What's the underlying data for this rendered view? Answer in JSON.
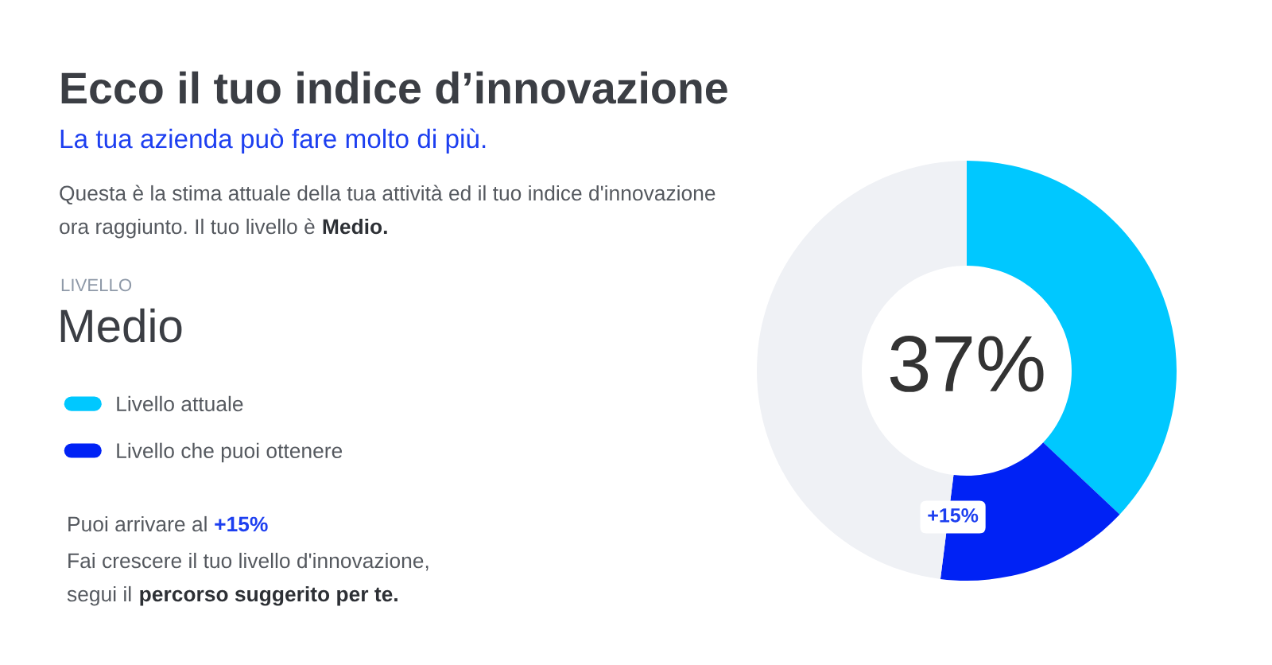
{
  "chart_data": {
    "type": "donut",
    "title": "Ecco il tuo indice d’innovazione",
    "subtitle": "La tua azienda può fare molto di più.",
    "categories": [
      "Livello attuale",
      "Livello che puoi ottenere",
      null
    ],
    "values": [
      37,
      15,
      48
    ],
    "colors": [
      "#00c8ff",
      "#0022f5",
      "#eff1f5"
    ],
    "value_labels": [
      null,
      "+15%",
      null
    ],
    "legend": "left",
    "annotations": [
      "Questa è la stima attuale della tua attività ed il tuo indice d'innovazione",
      "ora raggiunto. Il tuo livello è",
      "Medio.",
      "LIVELLO",
      "Medio",
      "Puoi arrivare al",
      "+15%",
      "Fai crescere il tuo livello d'innovazione,",
      "segui il",
      "percorso suggerito per te.",
      "37%"
    ]
  }
}
